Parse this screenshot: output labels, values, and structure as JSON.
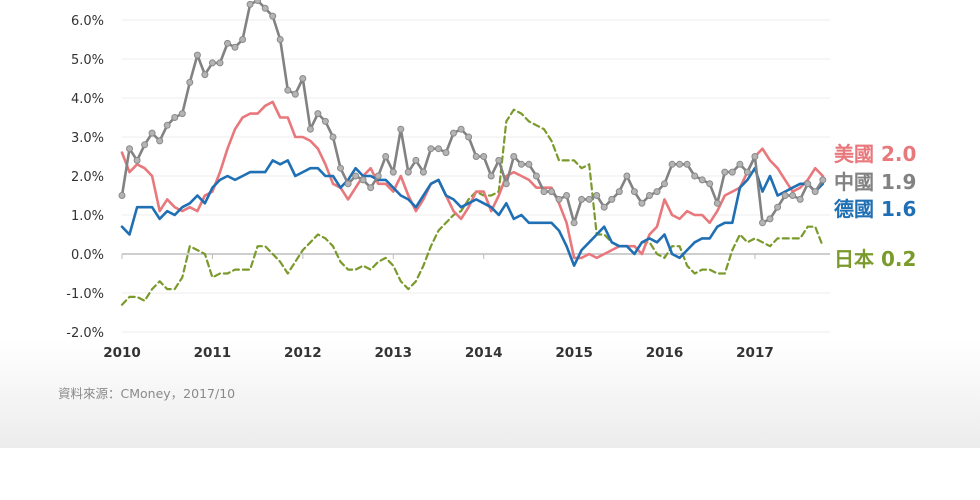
{
  "chart_data": {
    "type": "line",
    "x_start": 2010.0,
    "x_step": 0.0833333,
    "xlim": [
      2010,
      2017.83
    ],
    "ylim": [
      -2.0,
      6.0
    ],
    "y_ticks": [
      -2.0,
      -1.0,
      0.0,
      1.0,
      2.0,
      3.0,
      4.0,
      5.0,
      6.0
    ],
    "y_tick_labels": [
      "-2.0%",
      "-1.0%",
      "0.0%",
      "1.0%",
      "2.0%",
      "3.0%",
      "4.0%",
      "5.0%",
      "6.0%"
    ],
    "x_ticks": [
      2010,
      2011,
      2012,
      2013,
      2014,
      2015,
      2016,
      2017
    ],
    "x_tick_labels": [
      "2010",
      "2011",
      "2012",
      "2013",
      "2014",
      "2015",
      "2016",
      "2017"
    ],
    "series": [
      {
        "name": "美國",
        "color": "#e8787c",
        "style": "solid",
        "markers": false,
        "label_value": "2.0",
        "values": [
          2.6,
          2.1,
          2.3,
          2.2,
          2.0,
          1.1,
          1.4,
          1.2,
          1.1,
          1.2,
          1.1,
          1.5,
          1.6,
          2.1,
          2.7,
          3.2,
          3.5,
          3.6,
          3.6,
          3.8,
          3.9,
          3.5,
          3.5,
          3.0,
          3.0,
          2.9,
          2.7,
          2.3,
          1.8,
          1.7,
          1.4,
          1.7,
          2.0,
          2.2,
          1.8,
          1.8,
          1.6,
          2.0,
          1.5,
          1.1,
          1.4,
          1.8,
          1.9,
          1.5,
          1.1,
          0.9,
          1.2,
          1.6,
          1.6,
          1.1,
          1.5,
          2.0,
          2.1,
          2.0,
          1.9,
          1.7,
          1.7,
          1.7,
          1.3,
          0.8,
          -0.1,
          -0.1,
          0.0,
          -0.1,
          0.0,
          0.1,
          0.2,
          0.2,
          0.2,
          0.0,
          0.5,
          0.7,
          1.4,
          1.0,
          0.9,
          1.1,
          1.0,
          1.0,
          0.8,
          1.1,
          1.5,
          1.6,
          1.7,
          2.1,
          2.5,
          2.7,
          2.4,
          2.2,
          1.9,
          1.6,
          1.7,
          1.9,
          2.2,
          2.0
        ]
      },
      {
        "name": "中國",
        "color": "#828282",
        "style": "solid",
        "markers": true,
        "label_value": "1.9",
        "values": [
          1.5,
          2.7,
          2.4,
          2.8,
          3.1,
          2.9,
          3.3,
          3.5,
          3.6,
          4.4,
          5.1,
          4.6,
          4.9,
          4.9,
          5.4,
          5.3,
          5.5,
          6.4,
          6.5,
          6.3,
          6.1,
          5.5,
          4.2,
          4.1,
          4.5,
          3.2,
          3.6,
          3.4,
          3.0,
          2.2,
          1.8,
          2.0,
          1.9,
          1.7,
          2.0,
          2.5,
          2.1,
          3.2,
          2.1,
          2.4,
          2.1,
          2.7,
          2.7,
          2.6,
          3.1,
          3.2,
          3.0,
          2.5,
          2.5,
          2.0,
          2.4,
          1.8,
          2.5,
          2.3,
          2.3,
          2.0,
          1.6,
          1.6,
          1.4,
          1.5,
          0.8,
          1.4,
          1.4,
          1.5,
          1.2,
          1.4,
          1.6,
          2.0,
          1.6,
          1.3,
          1.5,
          1.6,
          1.8,
          2.3,
          2.3,
          2.3,
          2.0,
          1.9,
          1.8,
          1.3,
          2.1,
          2.1,
          2.3,
          2.1,
          2.5,
          0.8,
          0.9,
          1.2,
          1.5,
          1.5,
          1.4,
          1.8,
          1.6,
          1.9
        ]
      },
      {
        "name": "德國",
        "color": "#1f6fb4",
        "style": "solid",
        "markers": false,
        "label_value": "1.6",
        "values": [
          0.7,
          0.5,
          1.2,
          1.2,
          1.2,
          0.9,
          1.1,
          1.0,
          1.2,
          1.3,
          1.5,
          1.3,
          1.7,
          1.9,
          2.0,
          1.9,
          2.0,
          2.1,
          2.1,
          2.1,
          2.4,
          2.3,
          2.4,
          2.0,
          2.1,
          2.2,
          2.2,
          2.0,
          2.0,
          1.7,
          1.9,
          2.2,
          2.0,
          2.0,
          1.9,
          1.9,
          1.7,
          1.5,
          1.4,
          1.2,
          1.5,
          1.8,
          1.9,
          1.5,
          1.4,
          1.2,
          1.3,
          1.4,
          1.3,
          1.2,
          1.0,
          1.3,
          0.9,
          1.0,
          0.8,
          0.8,
          0.8,
          0.8,
          0.6,
          0.2,
          -0.3,
          0.1,
          0.3,
          0.5,
          0.7,
          0.3,
          0.2,
          0.2,
          0.0,
          0.3,
          0.4,
          0.3,
          0.5,
          0.0,
          -0.1,
          0.1,
          0.3,
          0.4,
          0.4,
          0.7,
          0.8,
          0.8,
          1.7,
          1.9,
          2.2,
          1.6,
          2.0,
          1.5,
          1.6,
          1.7,
          1.8,
          1.8,
          1.6,
          1.8
        ]
      },
      {
        "name": "日本",
        "color": "#7a9a2c",
        "style": "dashed",
        "markers": false,
        "label_value": "0.2",
        "values": [
          -1.3,
          -1.1,
          -1.1,
          -1.2,
          -0.9,
          -0.7,
          -0.9,
          -0.9,
          -0.6,
          0.2,
          0.1,
          0.0,
          -0.6,
          -0.5,
          -0.5,
          -0.4,
          -0.4,
          -0.4,
          0.2,
          0.2,
          0.0,
          -0.2,
          -0.5,
          -0.2,
          0.1,
          0.3,
          0.5,
          0.4,
          0.2,
          -0.2,
          -0.4,
          -0.4,
          -0.3,
          -0.4,
          -0.2,
          -0.1,
          -0.3,
          -0.7,
          -0.9,
          -0.7,
          -0.3,
          0.2,
          0.6,
          0.8,
          1.0,
          1.1,
          1.4,
          1.6,
          1.5,
          1.5,
          1.6,
          3.4,
          3.7,
          3.6,
          3.4,
          3.3,
          3.2,
          2.9,
          2.4,
          2.4,
          2.4,
          2.2,
          2.3,
          0.5,
          0.5,
          0.3,
          0.2,
          0.2,
          0.0,
          0.3,
          0.3,
          0.0,
          -0.1,
          0.2,
          0.2,
          -0.3,
          -0.5,
          -0.4,
          -0.4,
          -0.5,
          -0.5,
          0.1,
          0.5,
          0.3,
          0.4,
          0.3,
          0.2,
          0.4,
          0.4,
          0.4,
          0.4,
          0.7,
          0.7,
          0.2
        ]
      }
    ]
  },
  "source_note": "資料來源：CMoney，2017/10"
}
